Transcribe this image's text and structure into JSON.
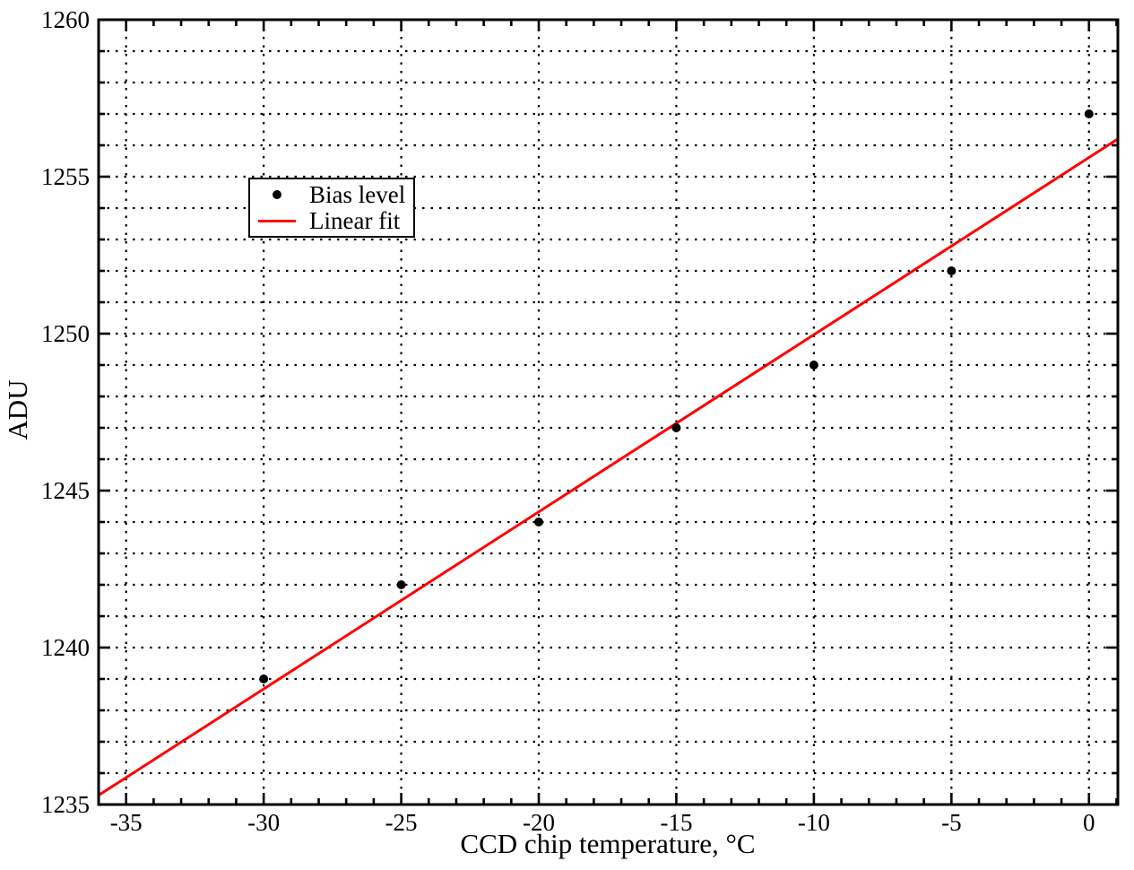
{
  "chart_data": {
    "type": "scatter",
    "title": "",
    "xlabel": "CCD chip temperature, °C",
    "ylabel": "ADU",
    "xlim": [
      -36,
      1.05
    ],
    "ylim": [
      1235,
      1260
    ],
    "x_tick_values": [
      -35,
      -30,
      -25,
      -20,
      -15,
      -10,
      -5,
      0
    ],
    "x_tick_labels": [
      "-35",
      "-30",
      "-25",
      "-20",
      "-15",
      "-10",
      "-5",
      "0"
    ],
    "x_minor_tick_step": 1,
    "y_tick_values": [
      1235,
      1240,
      1245,
      1250,
      1255,
      1260
    ],
    "y_tick_labels": [
      "1235",
      "1240",
      "1245",
      "1250",
      "1255",
      "1260"
    ],
    "y_minor_tick_step": 1,
    "grid": {
      "style": "dotted",
      "color": "#000000",
      "vertical_lines_at_x": [
        -35,
        -30,
        -25,
        -20,
        -15,
        -10,
        -5,
        0
      ],
      "horizontal_line_step_adu": 1
    },
    "series": [
      {
        "name": "Bias level",
        "type": "points",
        "marker": "filled-circle",
        "color": "#000000",
        "x": [
          -30,
          -25,
          -20,
          -15,
          -10,
          -5,
          0
        ],
        "y": [
          1239,
          1242,
          1244,
          1247,
          1249,
          1252,
          1257
        ]
      },
      {
        "name": "Linear fit",
        "type": "line",
        "color": "#ff0000",
        "fit": {
          "slope": 0.5643,
          "intercept": 1255.61
        },
        "x_range": [
          -36,
          1.05
        ]
      }
    ],
    "legend": {
      "position": "upper-left",
      "entries": [
        {
          "label": "Bias level",
          "marker": "black-dot"
        },
        {
          "label": "Linear fit",
          "marker": "red-line"
        }
      ]
    }
  },
  "colors": {
    "background": "#ffffff",
    "axes": "#000000",
    "grid": "#000000",
    "points": "#000000",
    "fit_line": "#ff0000"
  }
}
